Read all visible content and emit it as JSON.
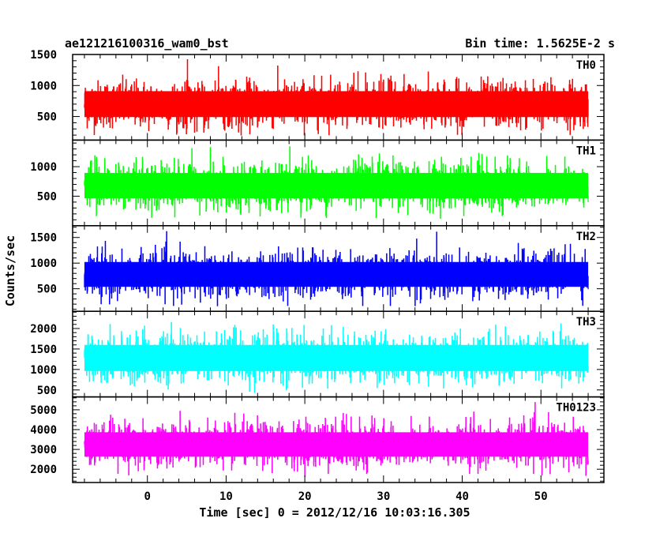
{
  "chart_data": {
    "type": "line",
    "title_left": "ae121216100316_wam0_bst",
    "title_right": "Bin time: 1.5625E-2 s",
    "xlabel": "Time [sec] 0 = 2012/12/16 10:03:16.305",
    "ylabel": "Counts/sec",
    "xlim": [
      -9.5,
      58
    ],
    "xticks": [
      0,
      10,
      20,
      30,
      40,
      50
    ],
    "data_x_range": [
      -8,
      56
    ],
    "bin_time": 0.015625,
    "panels": [
      {
        "name": "TH0",
        "color": "#ff0000",
        "ylim": [
          120,
          1500
        ],
        "yticks": [
          500,
          1000,
          1500
        ],
        "mean": 700,
        "sigma": 190,
        "clip": [
          180,
          1500
        ]
      },
      {
        "name": "TH1",
        "color": "#00ff00",
        "ylim": [
          0,
          1450
        ],
        "yticks": [
          500,
          1000
        ],
        "mean": 680,
        "sigma": 195,
        "clip": [
          110,
          1450
        ]
      },
      {
        "name": "TH2",
        "color": "#0000ff",
        "ylim": [
          60,
          1730
        ],
        "yticks": [
          500,
          1000,
          1500
        ],
        "mean": 780,
        "sigma": 220,
        "clip": [
          150,
          1730
        ]
      },
      {
        "name": "TH3",
        "color": "#00ffff",
        "ylim": [
          330,
          2420
        ],
        "yticks": [
          500,
          1000,
          1500,
          2000
        ],
        "mean": 1280,
        "sigma": 290,
        "clip": [
          410,
          2420
        ]
      },
      {
        "name": "TH0123",
        "color": "#ff00ff",
        "ylim": [
          1330,
          5650
        ],
        "yticks": [
          2000,
          3000,
          4000,
          5000
        ],
        "mean": 3250,
        "sigma": 560,
        "clip": [
          1600,
          5650
        ]
      }
    ]
  }
}
